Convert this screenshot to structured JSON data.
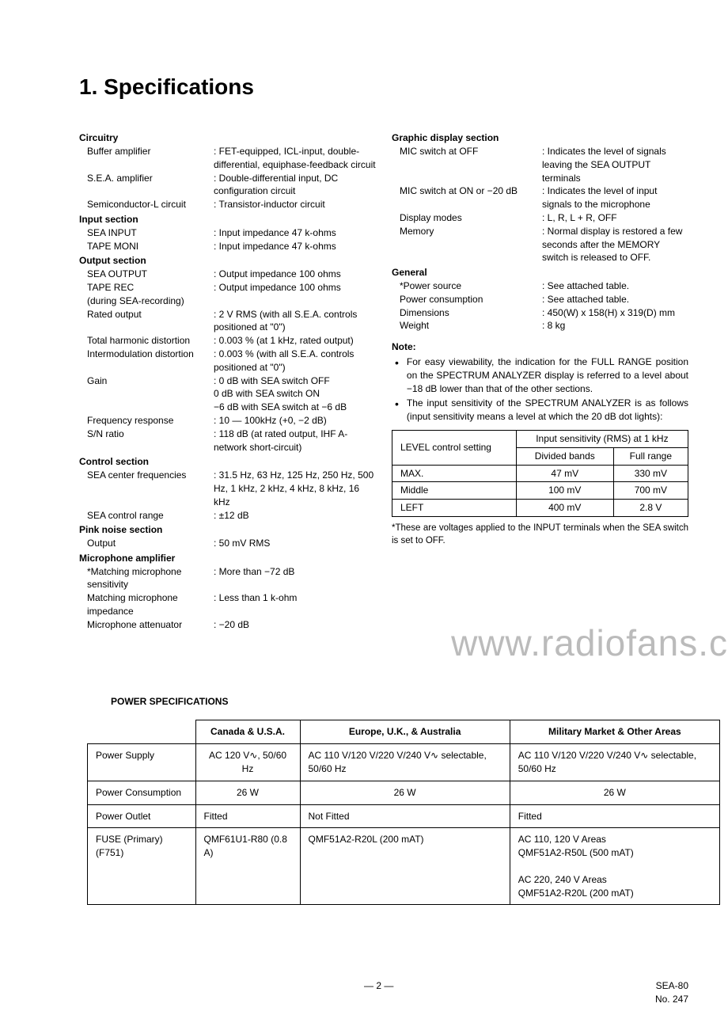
{
  "title": "1.  Specifications",
  "left": {
    "circuitry": {
      "head": "Circuitry",
      "rows": [
        {
          "label": "Buffer amplifier",
          "val": "FET-equipped, ICL-input, double-differential, equiphase-feedback circuit"
        },
        {
          "label": "S.E.A. amplifier",
          "val": "Double-differential input, DC configuration circuit"
        },
        {
          "label": "Semiconductor-L circuit",
          "val": "Transistor-inductor circuit"
        }
      ]
    },
    "input": {
      "head": "Input section",
      "rows": [
        {
          "label": "SEA INPUT",
          "val": "Input impedance   47 k-ohms"
        },
        {
          "label": "TAPE MONI",
          "val": "Input impedance   47 k-ohms"
        }
      ]
    },
    "output": {
      "head": "Output section",
      "rows": [
        {
          "label": "SEA OUTPUT",
          "val": "Output impedance 100 ohms"
        },
        {
          "label": "TAPE REC",
          "val": "Output impedance 100 ohms"
        },
        {
          "label": "(during SEA-recording)",
          "val": ""
        },
        {
          "label": "Rated output",
          "val": "2 V RMS (with all S.E.A. controls positioned at \"0\")"
        },
        {
          "label": "Total harmonic distortion",
          "val": "0.003 % (at 1 kHz, rated output)"
        },
        {
          "label": "Intermodulation distortion",
          "val": "0.003 % (with all S.E.A. controls positioned at \"0\")"
        },
        {
          "label": "Gain",
          "val": "  0   dB with SEA switch OFF\n  0   dB with SEA switch ON\n −6 dB with SEA switch at −6 dB"
        },
        {
          "label": "Frequency response",
          "val": "10 — 100kHz (+0, −2 dB)"
        },
        {
          "label": "S/N ratio",
          "val": "118 dB (at rated output, IHF A-network short-circuit)"
        }
      ]
    },
    "control": {
      "head": "Control section",
      "rows": [
        {
          "label": "SEA center frequencies",
          "val": "31.5 Hz, 63 Hz, 125 Hz, 250 Hz, 500 Hz, 1 kHz, 2 kHz, 4 kHz, 8 kHz, 16 kHz"
        },
        {
          "label": "SEA control range",
          "val": "±12 dB"
        }
      ]
    },
    "pink": {
      "head": "Pink noise section",
      "rows": [
        {
          "label": "Output",
          "val": "50 mV RMS"
        }
      ]
    },
    "mic": {
      "head": "Microphone amplifier",
      "rows": [
        {
          "label": "*Matching microphone sensitivity",
          "val": "More than −72 dB"
        },
        {
          "label": "Matching microphone impedance",
          "val": "Less than 1 k-ohm"
        },
        {
          "label": "Microphone attenuator",
          "val": "−20 dB"
        }
      ]
    }
  },
  "right": {
    "graphic": {
      "head": "Graphic display section",
      "rows": [
        {
          "label": "MIC switch at OFF",
          "val": "Indicates the level of signals leaving the SEA OUTPUT terminals"
        },
        {
          "label": "MIC switch at ON or −20 dB",
          "val": "Indicates the level of input signals to the microphone"
        },
        {
          "label": "Display modes",
          "val": "L, R, L + R, OFF"
        },
        {
          "label": "Memory",
          "val": "Normal display is restored a few seconds after the MEMORY switch is released to OFF."
        }
      ]
    },
    "general": {
      "head": "General",
      "rows": [
        {
          "label": "*Power source",
          "val": "See attached table."
        },
        {
          "label": "Power consumption",
          "val": "See attached table."
        },
        {
          "label": "Dimensions",
          "val": "450(W) x 158(H) x 319(D) mm"
        },
        {
          "label": "Weight",
          "val": "8 kg"
        }
      ]
    },
    "note": {
      "head": "Note:",
      "bullets": [
        "For easy viewability, the indication for the FULL RANGE position on the SPECTRUM ANALYZER display is referred to a level about −18 dB lower than that of the other sections.",
        "The input sensitivity of the SPECTRUM ANALYZER is as follows (input sensitivity means a level at which the 20 dB dot lights):"
      ]
    },
    "sensTable": {
      "h1": "LEVEL control setting",
      "h2": "Input sensitivity (RMS) at 1 kHz",
      "sub1": "Divided bands",
      "sub2": "Full range",
      "rows": [
        {
          "c0": "MAX.",
          "c1": "47 mV",
          "c2": "330 mV"
        },
        {
          "c0": "Middle",
          "c1": "100 mV",
          "c2": "700 mV"
        },
        {
          "c0": "LEFT",
          "c1": "400 mV",
          "c2": "2.8 V"
        }
      ]
    },
    "tableNote": "*These are voltages applied to the INPUT terminals when the SEA switch is set to OFF."
  },
  "watermark": "www.radiofans.c",
  "powerHead": "POWER  SPECIFICATIONS",
  "powerTable": {
    "headers": [
      "",
      "Canada & U.S.A.",
      "Europe, U.K., & Australia",
      "Military Market & Other Areas"
    ],
    "rows": [
      {
        "label": "Power Supply",
        "c1": "AC 120 V∿, 50/60 Hz",
        "c2": "AC 110 V/120 V/220 V/240 V∿ selectable, 50/60 Hz",
        "c3": "AC 110 V/120 V/220 V/240 V∿ selectable, 50/60 Hz"
      },
      {
        "label": "Power Consumption",
        "c1": "26 W",
        "c2": "26 W",
        "c3": "26 W",
        "center": true
      },
      {
        "label": "Power Outlet",
        "c1": "Fitted",
        "c2": "Not Fitted",
        "c3": "Fitted"
      },
      {
        "label": "FUSE (Primary) (F751)",
        "c1": "QMF61U1-R80 (0.8 A)",
        "c2": "QMF51A2-R20L (200 mAT)",
        "c3": "AC 110, 120 V Areas\nQMF51A2-R50L (500 mAT)\n\nAC 220, 240 V Areas\nQMF51A2-R20L (200 mAT)"
      }
    ]
  },
  "footer": {
    "page": "— 2 —",
    "model": "SEA-80",
    "num": "No. 247"
  }
}
